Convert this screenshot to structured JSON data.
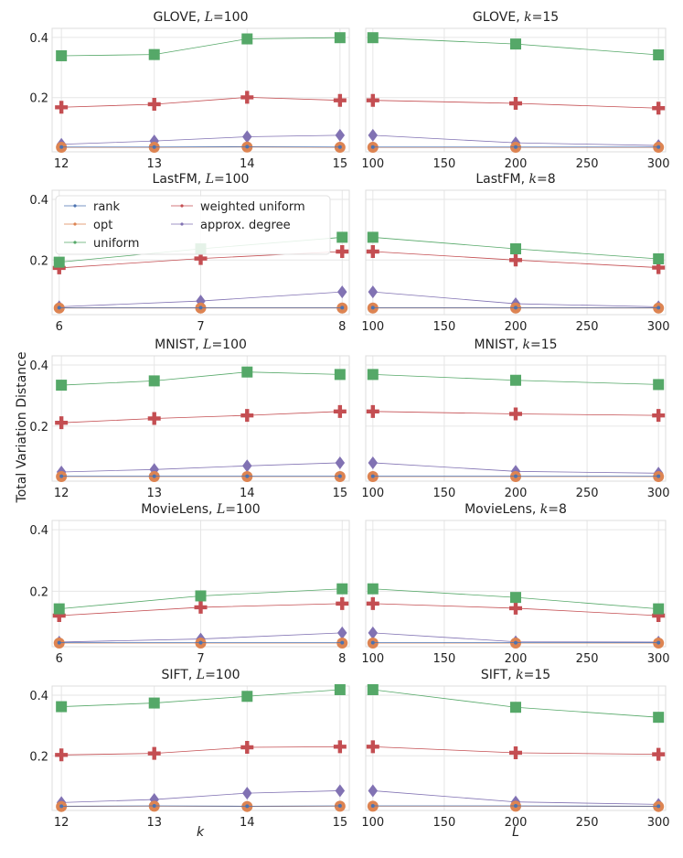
{
  "figure": {
    "ylabel": "Total Variation Distance",
    "xlabel_left": "k",
    "xlabel_right": "L"
  },
  "series_styles": {
    "rank": {
      "color": "#4c72b0",
      "marker": "dot"
    },
    "opt": {
      "color": "#dd8452",
      "marker": "circle"
    },
    "uniform": {
      "color": "#55a868",
      "marker": "square"
    },
    "weighted uniform": {
      "color": "#c44e52",
      "marker": "plus"
    },
    "approx. degree": {
      "color": "#8172b3",
      "marker": "diamond"
    }
  },
  "legend": {
    "placement": "upper-left of LastFM L=100 panel",
    "entries": [
      "rank",
      "opt",
      "uniform",
      "weighted uniform",
      "approx. degree"
    ]
  },
  "chart_data": [
    {
      "type": "line",
      "title": "GLOVE, L=100",
      "title_prefix": "GLOVE, ",
      "title_var": "L",
      "title_value": "=100",
      "x": [
        12,
        13,
        14,
        15
      ],
      "xticks": [
        "12",
        "13",
        "14",
        "15"
      ],
      "xlim": [
        11.9,
        15.1
      ],
      "ylim": [
        0.02,
        0.43
      ],
      "yticks": [
        0.2,
        0.4
      ],
      "ytick_labels": [
        "0.2",
        "0.4"
      ],
      "grid": true,
      "series": [
        {
          "name": "rank",
          "values": [
            0.036,
            0.036,
            0.037,
            0.036
          ]
        },
        {
          "name": "opt",
          "values": [
            0.035,
            0.035,
            0.036,
            0.035
          ]
        },
        {
          "name": "uniform",
          "values": [
            0.339,
            0.343,
            0.395,
            0.399
          ]
        },
        {
          "name": "weighted uniform",
          "values": [
            0.168,
            0.178,
            0.201,
            0.191
          ]
        },
        {
          "name": "approx. degree",
          "values": [
            0.045,
            0.056,
            0.07,
            0.075
          ]
        }
      ]
    },
    {
      "type": "line",
      "title": "GLOVE, k=15",
      "title_prefix": "GLOVE, ",
      "title_var": "k",
      "title_value": "=15",
      "x": [
        100,
        200,
        300
      ],
      "xticks": [
        "100",
        "150",
        "200",
        "250",
        "300"
      ],
      "xtick_values": [
        100,
        150,
        200,
        250,
        300
      ],
      "xlim": [
        95,
        305
      ],
      "ylim": [
        0.02,
        0.43
      ],
      "yticks": [
        0.2,
        0.4
      ],
      "ytick_labels": [
        "",
        ""
      ],
      "grid": true,
      "series": [
        {
          "name": "rank",
          "values": [
            0.036,
            0.036,
            0.036
          ]
        },
        {
          "name": "opt",
          "values": [
            0.035,
            0.035,
            0.035
          ]
        },
        {
          "name": "uniform",
          "values": [
            0.399,
            0.378,
            0.342
          ]
        },
        {
          "name": "weighted uniform",
          "values": [
            0.191,
            0.181,
            0.165
          ]
        },
        {
          "name": "approx. degree",
          "values": [
            0.075,
            0.05,
            0.041
          ]
        }
      ]
    },
    {
      "type": "line",
      "title": "LastFM, L=100",
      "title_prefix": "LastFM, ",
      "title_var": "L",
      "title_value": "=100",
      "x": [
        6,
        7,
        8
      ],
      "xticks": [
        "6",
        "7",
        "8"
      ],
      "xlim": [
        5.95,
        8.05
      ],
      "ylim": [
        0.02,
        0.43
      ],
      "yticks": [
        0.2,
        0.4
      ],
      "ytick_labels": [
        "0.2",
        "0.4"
      ],
      "grid": true,
      "series": [
        {
          "name": "rank",
          "values": [
            0.043,
            0.043,
            0.043
          ]
        },
        {
          "name": "opt",
          "values": [
            0.042,
            0.042,
            0.042
          ]
        },
        {
          "name": "uniform",
          "values": [
            0.193,
            0.237,
            0.275
          ]
        },
        {
          "name": "weighted uniform",
          "values": [
            0.174,
            0.205,
            0.228
          ]
        },
        {
          "name": "approx. degree",
          "values": [
            0.046,
            0.065,
            0.095
          ]
        }
      ]
    },
    {
      "type": "line",
      "title": "LastFM, k=8",
      "title_prefix": "LastFM, ",
      "title_var": "k",
      "title_value": "=8",
      "x": [
        100,
        200,
        300
      ],
      "xticks": [
        "100",
        "150",
        "200",
        "250",
        "300"
      ],
      "xtick_values": [
        100,
        150,
        200,
        250,
        300
      ],
      "xlim": [
        95,
        305
      ],
      "ylim": [
        0.02,
        0.43
      ],
      "yticks": [
        0.2,
        0.4
      ],
      "ytick_labels": [
        "",
        ""
      ],
      "grid": true,
      "series": [
        {
          "name": "rank",
          "values": [
            0.043,
            0.043,
            0.043
          ]
        },
        {
          "name": "opt",
          "values": [
            0.042,
            0.042,
            0.042
          ]
        },
        {
          "name": "uniform",
          "values": [
            0.275,
            0.237,
            0.204
          ]
        },
        {
          "name": "weighted uniform",
          "values": [
            0.228,
            0.2,
            0.175
          ]
        },
        {
          "name": "approx. degree",
          "values": [
            0.095,
            0.056,
            0.046
          ]
        }
      ]
    },
    {
      "type": "line",
      "title": "MNIST, L=100",
      "title_prefix": "MNIST, ",
      "title_var": "L",
      "title_value": "=100",
      "x": [
        12,
        13,
        14,
        15
      ],
      "xticks": [
        "12",
        "13",
        "14",
        "15"
      ],
      "xlim": [
        11.9,
        15.1
      ],
      "ylim": [
        0.02,
        0.43
      ],
      "yticks": [
        0.2,
        0.4
      ],
      "ytick_labels": [
        "0.2",
        "0.4"
      ],
      "grid": true,
      "series": [
        {
          "name": "rank",
          "values": [
            0.036,
            0.036,
            0.036,
            0.036
          ]
        },
        {
          "name": "opt",
          "values": [
            0.035,
            0.035,
            0.035,
            0.035
          ]
        },
        {
          "name": "uniform",
          "values": [
            0.334,
            0.348,
            0.377,
            0.369
          ]
        },
        {
          "name": "weighted uniform",
          "values": [
            0.211,
            0.225,
            0.235,
            0.248
          ]
        },
        {
          "name": "approx. degree",
          "values": [
            0.05,
            0.058,
            0.07,
            0.08
          ]
        }
      ]
    },
    {
      "type": "line",
      "title": "MNIST, k=15",
      "title_prefix": "MNIST, ",
      "title_var": "k",
      "title_value": "=15",
      "x": [
        100,
        200,
        300
      ],
      "xticks": [
        "100",
        "150",
        "200",
        "250",
        "300"
      ],
      "xtick_values": [
        100,
        150,
        200,
        250,
        300
      ],
      "xlim": [
        95,
        305
      ],
      "ylim": [
        0.02,
        0.43
      ],
      "yticks": [
        0.2,
        0.4
      ],
      "ytick_labels": [
        "",
        ""
      ],
      "grid": true,
      "series": [
        {
          "name": "rank",
          "values": [
            0.036,
            0.036,
            0.036
          ]
        },
        {
          "name": "opt",
          "values": [
            0.035,
            0.035,
            0.035
          ]
        },
        {
          "name": "uniform",
          "values": [
            0.369,
            0.35,
            0.336
          ]
        },
        {
          "name": "weighted uniform",
          "values": [
            0.248,
            0.24,
            0.235
          ]
        },
        {
          "name": "approx. degree",
          "values": [
            0.08,
            0.052,
            0.046
          ]
        }
      ]
    },
    {
      "type": "line",
      "title": "MovieLens, L=100",
      "title_prefix": "MovieLens, ",
      "title_var": "L",
      "title_value": "=100",
      "x": [
        6,
        7,
        8
      ],
      "xticks": [
        "6",
        "7",
        "8"
      ],
      "xlim": [
        5.95,
        8.05
      ],
      "ylim": [
        0.02,
        0.43
      ],
      "yticks": [
        0.2,
        0.4
      ],
      "ytick_labels": [
        "0.2",
        "0.4"
      ],
      "grid": true,
      "series": [
        {
          "name": "rank",
          "values": [
            0.033,
            0.033,
            0.033
          ]
        },
        {
          "name": "opt",
          "values": [
            0.032,
            0.032,
            0.032
          ]
        },
        {
          "name": "uniform",
          "values": [
            0.143,
            0.185,
            0.208
          ]
        },
        {
          "name": "weighted uniform",
          "values": [
            0.121,
            0.148,
            0.16
          ]
        },
        {
          "name": "approx. degree",
          "values": [
            0.035,
            0.045,
            0.065
          ]
        }
      ]
    },
    {
      "type": "line",
      "title": "MovieLens, k=8",
      "title_prefix": "MovieLens, ",
      "title_var": "k",
      "title_value": "=8",
      "x": [
        100,
        200,
        300
      ],
      "xticks": [
        "100",
        "150",
        "200",
        "250",
        "300"
      ],
      "xtick_values": [
        100,
        150,
        200,
        250,
        300
      ],
      "xlim": [
        95,
        305
      ],
      "ylim": [
        0.02,
        0.43
      ],
      "yticks": [
        0.2,
        0.4
      ],
      "ytick_labels": [
        "",
        ""
      ],
      "grid": true,
      "series": [
        {
          "name": "rank",
          "values": [
            0.033,
            0.033,
            0.033
          ]
        },
        {
          "name": "opt",
          "values": [
            0.032,
            0.032,
            0.032
          ]
        },
        {
          "name": "uniform",
          "values": [
            0.208,
            0.18,
            0.143
          ]
        },
        {
          "name": "weighted uniform",
          "values": [
            0.16,
            0.145,
            0.121
          ]
        },
        {
          "name": "approx. degree",
          "values": [
            0.065,
            0.036,
            0.035
          ]
        }
      ]
    },
    {
      "type": "line",
      "title": "SIFT, L=100",
      "title_prefix": "SIFT, ",
      "title_var": "L",
      "title_value": "=100",
      "x": [
        12,
        13,
        14,
        15
      ],
      "xticks": [
        "12",
        "13",
        "14",
        "15"
      ],
      "xlim": [
        11.9,
        15.1
      ],
      "ylim": [
        0.02,
        0.43
      ],
      "yticks": [
        0.2,
        0.4
      ],
      "ytick_labels": [
        "0.2",
        "0.4"
      ],
      "grid": true,
      "series": [
        {
          "name": "rank",
          "values": [
            0.034,
            0.035,
            0.034,
            0.035
          ]
        },
        {
          "name": "opt",
          "values": [
            0.033,
            0.034,
            0.033,
            0.034
          ]
        },
        {
          "name": "uniform",
          "values": [
            0.362,
            0.374,
            0.396,
            0.418
          ]
        },
        {
          "name": "weighted uniform",
          "values": [
            0.203,
            0.208,
            0.228,
            0.23
          ]
        },
        {
          "name": "approx. degree",
          "values": [
            0.046,
            0.056,
            0.077,
            0.085
          ]
        }
      ]
    },
    {
      "type": "line",
      "title": "SIFT, k=15",
      "title_prefix": "SIFT, ",
      "title_var": "k",
      "title_value": "=15",
      "x": [
        100,
        200,
        300
      ],
      "xticks": [
        "100",
        "150",
        "200",
        "250",
        "300"
      ],
      "xtick_values": [
        100,
        150,
        200,
        250,
        300
      ],
      "xlim": [
        95,
        305
      ],
      "ylim": [
        0.02,
        0.43
      ],
      "yticks": [
        0.2,
        0.4
      ],
      "ytick_labels": [
        "",
        ""
      ],
      "grid": true,
      "series": [
        {
          "name": "rank",
          "values": [
            0.035,
            0.035,
            0.034
          ]
        },
        {
          "name": "opt",
          "values": [
            0.034,
            0.034,
            0.033
          ]
        },
        {
          "name": "uniform",
          "values": [
            0.418,
            0.36,
            0.327
          ]
        },
        {
          "name": "weighted uniform",
          "values": [
            0.23,
            0.21,
            0.205
          ]
        },
        {
          "name": "approx. degree",
          "values": [
            0.085,
            0.048,
            0.04
          ]
        }
      ]
    }
  ]
}
